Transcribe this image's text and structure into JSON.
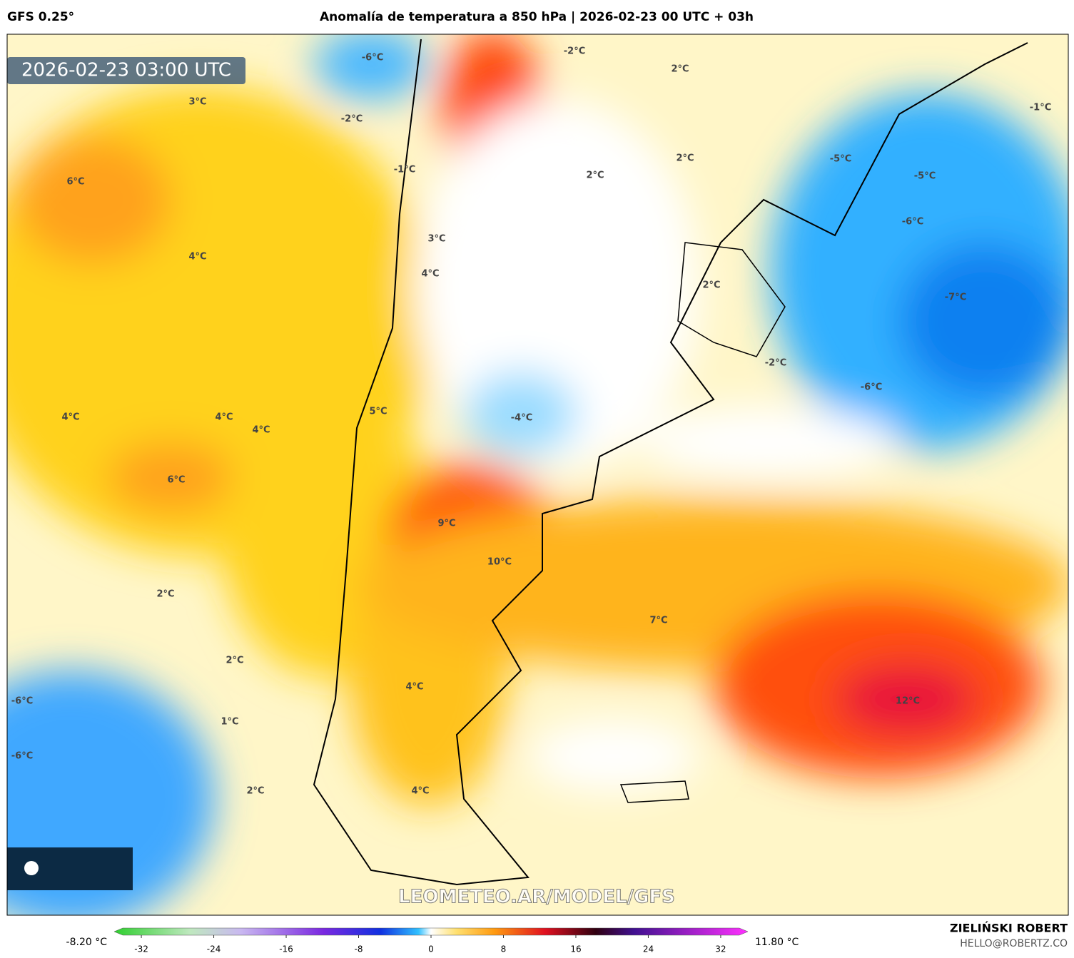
{
  "header": {
    "model": "GFS 0.25°",
    "title": "Anomalía de temperatura a 850 hPa | 2026-02-23 00 UTC + 03h"
  },
  "map": {
    "timestamp": "2026-02-23 03:00 UTC",
    "watermark": "LEOMETEO.AR/MODEL/GFS",
    "contour_labels": [
      "-6°C",
      "-2°C",
      "2°C",
      "3°C",
      "-2°C",
      "-1°C",
      "6°C",
      "-1°C",
      "2°C",
      "2°C",
      "-5°C",
      "-5°C",
      "-6°C",
      "3°C",
      "4°C",
      "4°C",
      "2°C",
      "-7°C",
      "-2°C",
      "-6°C",
      "4°C",
      "4°C",
      "4°C",
      "5°C",
      "-4°C",
      "6°C",
      "9°C",
      "10°C",
      "2°C",
      "7°C",
      "2°C",
      "4°C",
      "-6°C",
      "12°C",
      "1°C",
      "-6°C",
      "2°C",
      "4°C"
    ]
  },
  "colorbar": {
    "min_label": "-8.20 °C",
    "max_label": "11.80 °C",
    "clim": [
      -35,
      35
    ],
    "ticks": [
      -32,
      -24,
      -16,
      -8,
      0,
      8,
      16,
      24,
      32
    ]
  },
  "footer": {
    "author": "ZIELIŃSKI ROBERT",
    "email": "HELLO@ROBERTZ.CO"
  }
}
